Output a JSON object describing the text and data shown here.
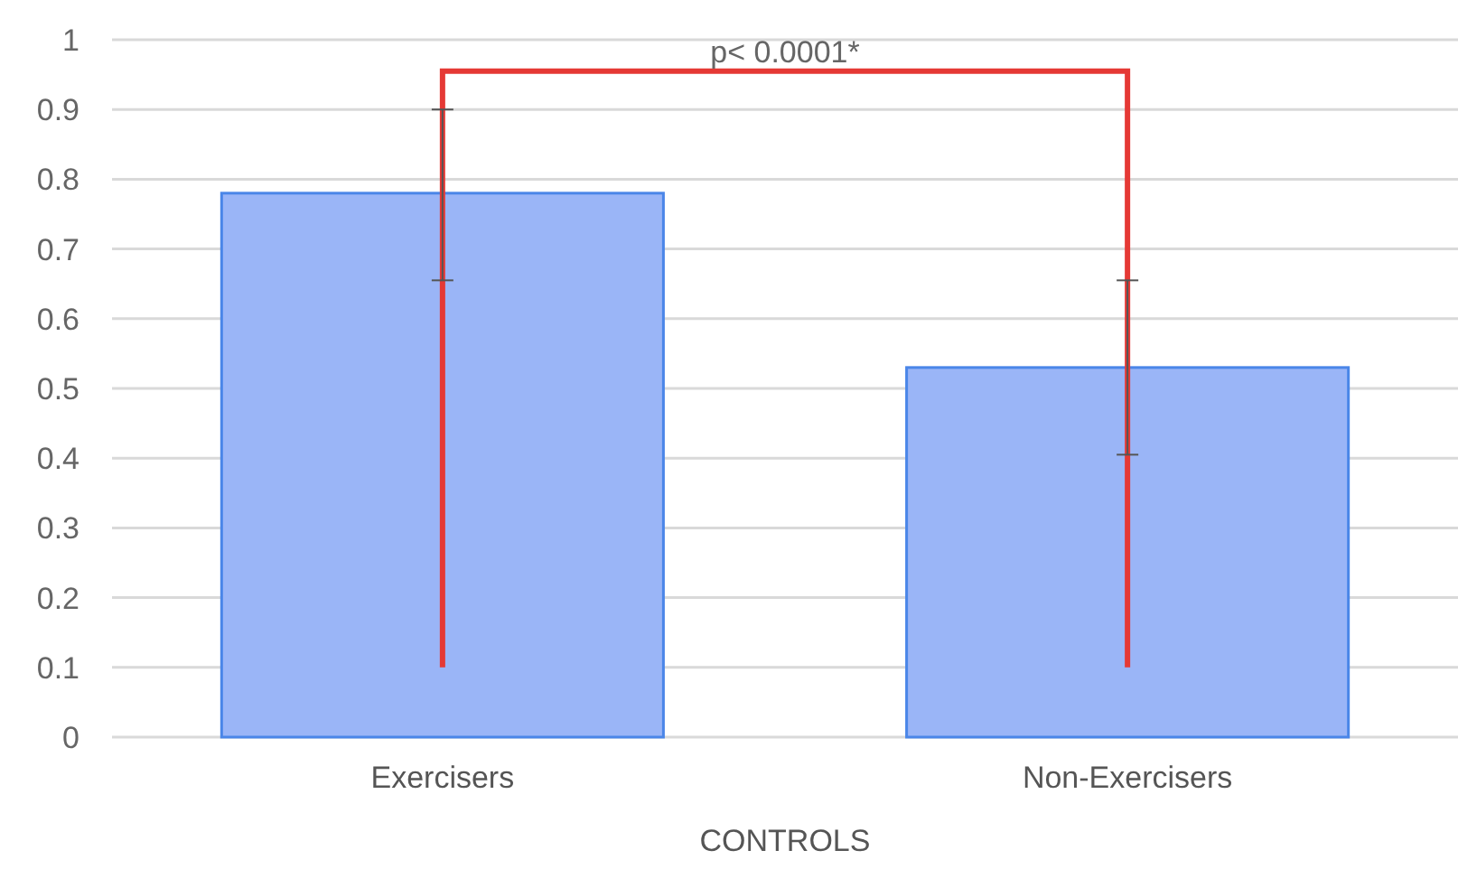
{
  "chart_data": {
    "type": "bar",
    "xlabel": "CONTROLS",
    "categories": [
      "Exercisers",
      "Non-Exercisers"
    ],
    "values": [
      0.78,
      0.53
    ],
    "color": "#9ab5f7",
    "errors": [
      [
        0.655,
        0.9
      ],
      [
        0.405,
        0.655
      ]
    ],
    "ylim": [
      0,
      1
    ],
    "yticks": [
      0,
      0.1,
      0.2,
      0.3,
      0.4,
      0.5,
      0.6,
      0.7,
      0.8,
      0.9,
      1
    ],
    "grid": "y",
    "annotations": [
      "p< 0.0001*"
    ]
  }
}
